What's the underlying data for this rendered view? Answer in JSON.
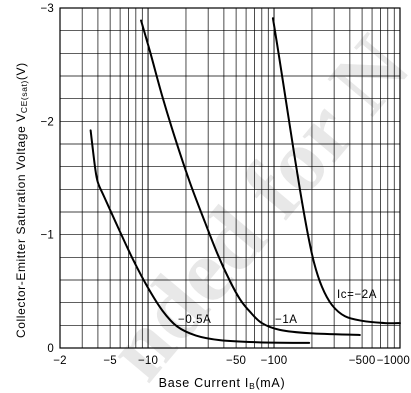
{
  "watermark": "nded for N",
  "chart_data": {
    "type": "line",
    "x_scale": "log",
    "xlim": [
      -2,
      -1000
    ],
    "ylim": [
      0,
      -3
    ],
    "grid": true,
    "y_grid_step": 0.2,
    "xlabel": {
      "main": "Base Current I",
      "sub": "B",
      "suffix": "(mA)"
    },
    "ylabel": {
      "main": "Collector-Emitter Saturation Voltage V",
      "sub": "CE(sat)",
      "suffix": "(V)"
    },
    "x_ticks": [
      {
        "value": -2,
        "label": "−2"
      },
      {
        "value": -5,
        "label": "−5"
      },
      {
        "value": -10,
        "label": "−10"
      },
      {
        "value": -50,
        "label": "−50"
      },
      {
        "value": -100,
        "label": "−100"
      },
      {
        "value": -500,
        "label": "−500"
      },
      {
        "value": -1000,
        "label": "−1000"
      }
    ],
    "y_ticks": [
      {
        "value": -3,
        "label": "−3"
      },
      {
        "value": -2,
        "label": "−2"
      },
      {
        "value": -1,
        "label": "−1"
      },
      {
        "value": 0,
        "label": "0"
      }
    ],
    "series": [
      {
        "name": "−0.5A",
        "color": "#000000",
        "points": [
          [
            -3.5,
            -1.92
          ],
          [
            -3.8,
            -1.59
          ],
          [
            -4.0,
            -1.46
          ],
          [
            -4.5,
            -1.33
          ],
          [
            -5.8,
            -1.06
          ],
          [
            -7.6,
            -0.78
          ],
          [
            -10,
            -0.53
          ],
          [
            -13,
            -0.33
          ],
          [
            -17,
            -0.19
          ],
          [
            -24,
            -0.11
          ],
          [
            -37,
            -0.07
          ],
          [
            -77,
            -0.05
          ],
          [
            -190,
            -0.045
          ]
        ]
      },
      {
        "name": "−1A",
        "color": "#000000",
        "points": [
          [
            -8.8,
            -2.89
          ],
          [
            -10.4,
            -2.61
          ],
          [
            -12.9,
            -2.23
          ],
          [
            -16.4,
            -1.85
          ],
          [
            -21.5,
            -1.46
          ],
          [
            -28.3,
            -1.11
          ],
          [
            -35.9,
            -0.82
          ],
          [
            -44.7,
            -0.59
          ],
          [
            -53.7,
            -0.43
          ],
          [
            -64.4,
            -0.32
          ],
          [
            -80,
            -0.22
          ],
          [
            -111,
            -0.16
          ],
          [
            -193,
            -0.13
          ],
          [
            -480,
            -0.115
          ]
        ]
      },
      {
        "name": "Ic=−2A",
        "color": "#000000",
        "points": [
          [
            -98,
            -2.91
          ],
          [
            -109,
            -2.59
          ],
          [
            -124,
            -2.19
          ],
          [
            -141,
            -1.79
          ],
          [
            -161,
            -1.39
          ],
          [
            -183,
            -1.04
          ],
          [
            -207,
            -0.76
          ],
          [
            -240,
            -0.54
          ],
          [
            -288,
            -0.38
          ],
          [
            -366,
            -0.28
          ],
          [
            -500,
            -0.24
          ],
          [
            -760,
            -0.22
          ],
          [
            -1000,
            -0.22
          ]
        ]
      }
    ]
  }
}
